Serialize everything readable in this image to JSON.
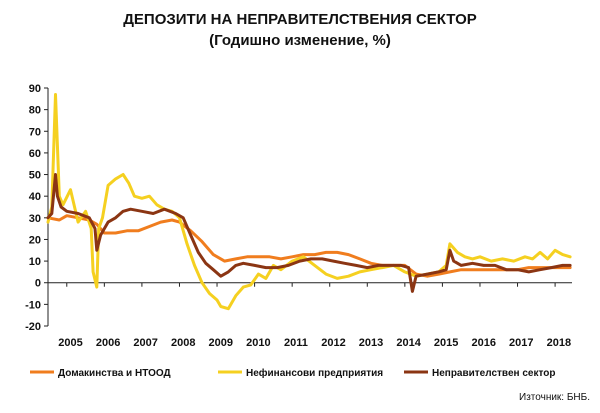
{
  "chart_data": {
    "type": "line",
    "title": "ДЕПОЗИТИ НА НЕПРАВИТЕЛСТВЕНИЯ СЕКТОР",
    "subtitle": "(Годишно изменение, %)",
    "xlabel": "",
    "ylabel": "",
    "ylim": [
      -20,
      90
    ],
    "yticks": [
      "-20",
      "-10",
      "0",
      "10",
      "20",
      "30",
      "40",
      "50",
      "60",
      "70",
      "80",
      "90"
    ],
    "xlim": [
      2004.5,
      2018.45
    ],
    "xticks": [
      {
        "label": "2005",
        "value": 2005.1
      },
      {
        "label": "2006",
        "value": 2006.1
      },
      {
        "label": "2007",
        "value": 2007.1
      },
      {
        "label": "2008",
        "value": 2008.1
      },
      {
        "label": "2009",
        "value": 2009.1
      },
      {
        "label": "2010",
        "value": 2010.1
      },
      {
        "label": "2011",
        "value": 2011.1
      },
      {
        "label": "2012",
        "value": 2012.1
      },
      {
        "label": "2013",
        "value": 2013.1
      },
      {
        "label": "2014",
        "value": 2014.1
      },
      {
        "label": "2015",
        "value": 2015.1
      },
      {
        "label": "2016",
        "value": 2016.1
      },
      {
        "label": "2017",
        "value": 2017.1
      },
      {
        "label": "2018",
        "value": 2018.1
      }
    ],
    "grid": false,
    "legend_position": "bottom",
    "source_note": "Източник: БНБ.",
    "series": [
      {
        "name": "Домакинства и НТООД",
        "color": "#F07D1E",
        "x": [
          2004.5,
          2004.8,
          2005.0,
          2005.3,
          2005.6,
          2005.8,
          2006.0,
          2006.3,
          2006.6,
          2006.9,
          2007.2,
          2007.5,
          2007.8,
          2008.0,
          2008.3,
          2008.6,
          2008.9,
          2009.2,
          2009.5,
          2009.8,
          2010.1,
          2010.4,
          2010.7,
          2011.0,
          2011.3,
          2011.6,
          2011.9,
          2012.2,
          2012.5,
          2012.8,
          2013.1,
          2013.4,
          2013.7,
          2014.0,
          2014.3,
          2014.6,
          2014.9,
          2015.2,
          2015.5,
          2015.8,
          2016.1,
          2016.4,
          2016.7,
          2017.0,
          2017.3,
          2017.6,
          2017.9,
          2018.2,
          2018.4
        ],
        "values": [
          30,
          29,
          31,
          30,
          29,
          27,
          23,
          23,
          24,
          24,
          26,
          28,
          29,
          28,
          24,
          19,
          13,
          10,
          11,
          12,
          12,
          12,
          11,
          12,
          13,
          13,
          14,
          14,
          13,
          11,
          9,
          8,
          8,
          8,
          4,
          3,
          4,
          5,
          6,
          6,
          6,
          6,
          6,
          6,
          7,
          7,
          7,
          7,
          7
        ]
      },
      {
        "name": "Нефинансови предприятия",
        "color": "#F5D020",
        "x": [
          2004.5,
          2004.6,
          2004.7,
          2004.8,
          2004.9,
          2005.1,
          2005.3,
          2005.5,
          2005.65,
          2005.7,
          2005.8,
          2005.85,
          2005.95,
          2006.1,
          2006.3,
          2006.5,
          2006.65,
          2006.8,
          2007.0,
          2007.2,
          2007.4,
          2007.6,
          2007.8,
          2008.0,
          2008.2,
          2008.4,
          2008.6,
          2008.8,
          2009.0,
          2009.1,
          2009.3,
          2009.5,
          2009.7,
          2009.9,
          2010.1,
          2010.3,
          2010.5,
          2010.7,
          2011.0,
          2011.3,
          2011.6,
          2011.9,
          2012.2,
          2012.5,
          2012.8,
          2013.1,
          2013.4,
          2013.7,
          2014.0,
          2014.3,
          2014.6,
          2014.9,
          2015.1,
          2015.2,
          2015.4,
          2015.6,
          2015.8,
          2016.0,
          2016.3,
          2016.6,
          2016.9,
          2017.2,
          2017.4,
          2017.6,
          2017.8,
          2018.0,
          2018.2,
          2018.4
        ],
        "values": [
          28,
          35,
          87,
          40,
          36,
          43,
          28,
          33,
          25,
          5,
          -2,
          25,
          30,
          45,
          48,
          50,
          46,
          40,
          39,
          40,
          36,
          34,
          33,
          30,
          18,
          8,
          0,
          -5,
          -8,
          -11,
          -12,
          -6,
          -2,
          -1,
          4,
          2,
          8,
          6,
          10,
          12,
          8,
          4,
          2,
          3,
          5,
          6,
          7,
          8,
          5,
          3,
          4,
          5,
          8,
          18,
          14,
          12,
          11,
          12,
          10,
          11,
          10,
          12,
          11,
          14,
          11,
          15,
          13,
          12
        ]
      },
      {
        "name": "Неправителствен сектор",
        "color": "#8B3513",
        "x": [
          2004.5,
          2004.6,
          2004.7,
          2004.75,
          2004.85,
          2005.0,
          2005.3,
          2005.6,
          2005.75,
          2005.8,
          2005.9,
          2006.1,
          2006.3,
          2006.5,
          2006.7,
          2007.0,
          2007.3,
          2007.6,
          2007.9,
          2008.1,
          2008.3,
          2008.5,
          2008.7,
          2008.9,
          2009.1,
          2009.3,
          2009.5,
          2009.7,
          2010.0,
          2010.3,
          2010.6,
          2010.9,
          2011.2,
          2011.5,
          2011.8,
          2012.1,
          2012.4,
          2012.7,
          2013.0,
          2013.3,
          2013.6,
          2013.9,
          2014.1,
          2014.2,
          2014.3,
          2014.6,
          2014.9,
          2015.1,
          2015.2,
          2015.3,
          2015.5,
          2015.8,
          2016.1,
          2016.4,
          2016.7,
          2017.0,
          2017.3,
          2017.6,
          2017.9,
          2018.2,
          2018.4
        ],
        "values": [
          30,
          32,
          50,
          40,
          35,
          33,
          32,
          30,
          25,
          15,
          22,
          28,
          30,
          33,
          34,
          33,
          32,
          34,
          32,
          30,
          22,
          14,
          9,
          6,
          3,
          5,
          8,
          9,
          8,
          7,
          7,
          8,
          10,
          11,
          11,
          10,
          9,
          8,
          7,
          8,
          8,
          8,
          7,
          -4,
          3,
          4,
          5,
          6,
          15,
          10,
          8,
          9,
          8,
          8,
          6,
          6,
          5,
          6,
          7,
          8,
          8
        ]
      }
    ]
  }
}
